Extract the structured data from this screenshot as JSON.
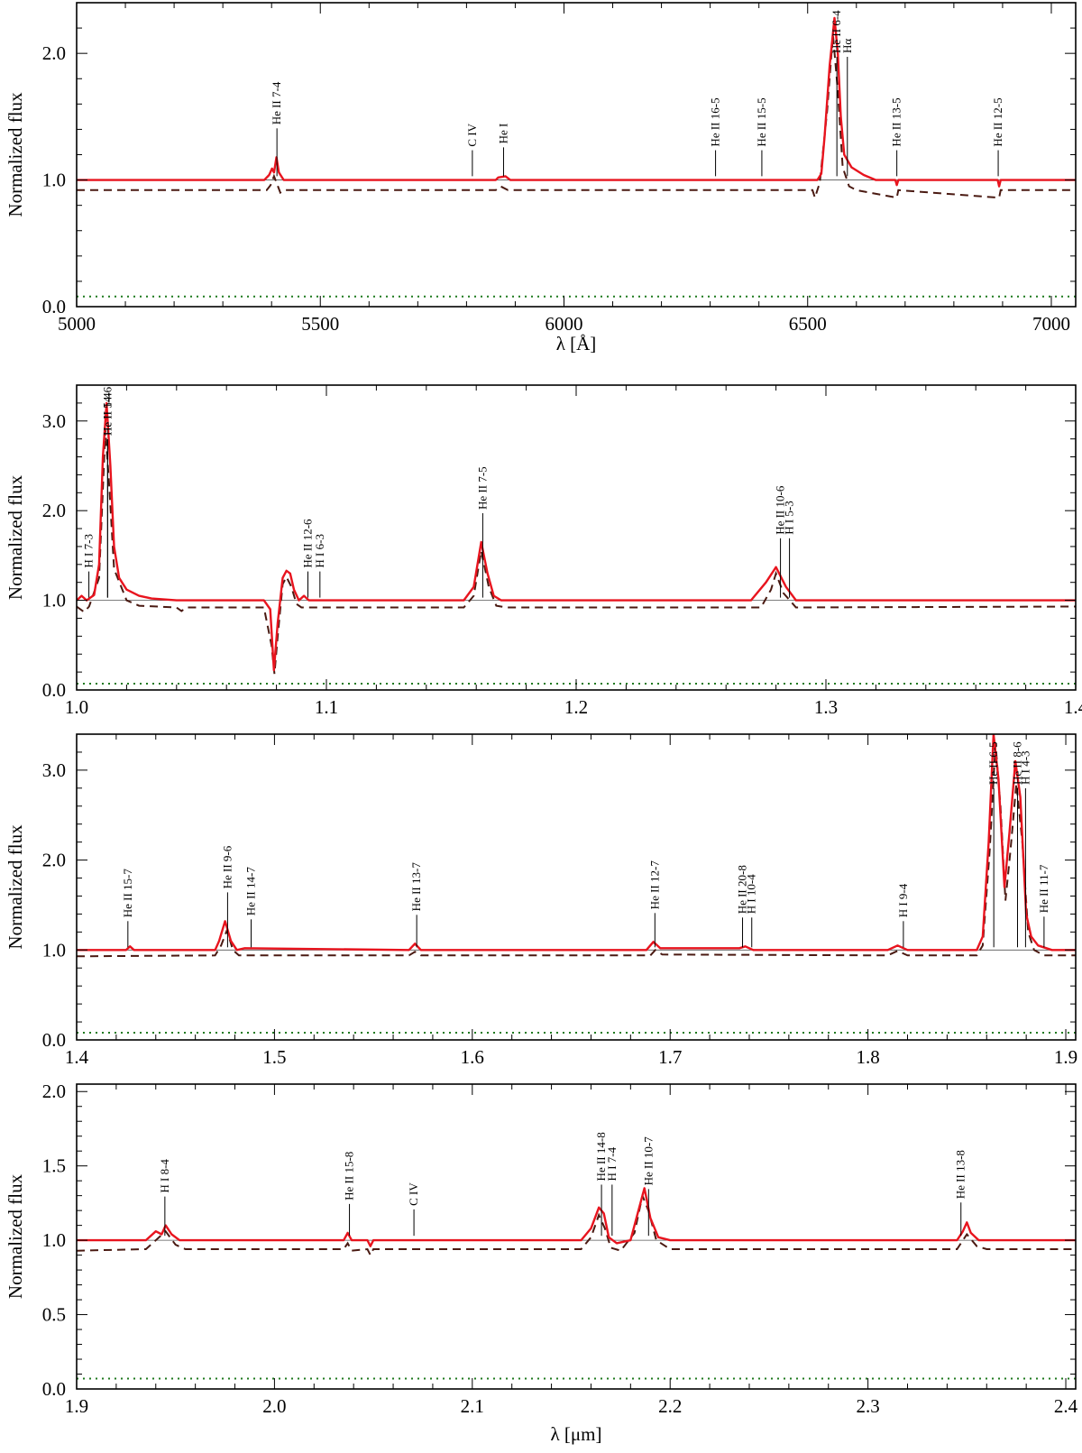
{
  "chart_data": [
    {
      "type": "line",
      "xlabel": "λ [Å]",
      "ylabel": "Normalized flux",
      "xlim": [
        5000,
        7050
      ],
      "ylim": [
        0,
        2.4
      ],
      "xticks": [
        5000,
        5500,
        6000,
        6500,
        7000
      ],
      "xtick_labels": [
        "5000",
        "5500",
        "6000",
        "6500",
        "7000"
      ],
      "yticks": [
        0,
        1,
        2
      ],
      "ytick_labels": [
        "0.0",
        "1.0",
        "2.0"
      ],
      "grid": false,
      "observed": [
        [
          5000,
          1.0
        ],
        [
          5385,
          1.0
        ],
        [
          5395,
          1.04
        ],
        [
          5401,
          1.09
        ],
        [
          5405,
          1.06
        ],
        [
          5410,
          1.18
        ],
        [
          5415,
          1.06
        ],
        [
          5425,
          1.0
        ],
        [
          5800,
          1.0
        ],
        [
          5860,
          1.0
        ],
        [
          5865,
          1.02
        ],
        [
          5880,
          1.03
        ],
        [
          5890,
          1.0
        ],
        [
          6520,
          1.0
        ],
        [
          6528,
          1.05
        ],
        [
          6535,
          1.35
        ],
        [
          6545,
          1.9
        ],
        [
          6555,
          2.28
        ],
        [
          6562,
          2.0
        ],
        [
          6568,
          1.5
        ],
        [
          6575,
          1.2
        ],
        [
          6590,
          1.1
        ],
        [
          6615,
          1.04
        ],
        [
          6640,
          1.0
        ],
        [
          6680,
          1.0
        ],
        [
          6683,
          0.96
        ],
        [
          6686,
          1.0
        ],
        [
          6890,
          1.0
        ],
        [
          6893,
          0.95
        ],
        [
          6896,
          1.0
        ],
        [
          7050,
          1.0
        ]
      ],
      "model": [
        [
          5000,
          0.92
        ],
        [
          5390,
          0.92
        ],
        [
          5398,
          0.96
        ],
        [
          5405,
          1.03
        ],
        [
          5412,
          0.96
        ],
        [
          5418,
          0.9
        ],
        [
          5425,
          0.92
        ],
        [
          5800,
          0.92
        ],
        [
          5860,
          0.92
        ],
        [
          5870,
          0.95
        ],
        [
          5885,
          0.92
        ],
        [
          6510,
          0.92
        ],
        [
          6515,
          0.86
        ],
        [
          6525,
          0.98
        ],
        [
          6540,
          1.55
        ],
        [
          6552,
          2.15
        ],
        [
          6562,
          1.7
        ],
        [
          6572,
          1.1
        ],
        [
          6585,
          0.95
        ],
        [
          6600,
          0.92
        ],
        [
          6683,
          0.86
        ],
        [
          6686,
          0.92
        ],
        [
          6893,
          0.86
        ],
        [
          6896,
          0.92
        ],
        [
          7050,
          0.92
        ]
      ],
      "model_level": 0.08,
      "line_ids": [
        {
          "x": 5411,
          "label": "He II 7-4"
        },
        {
          "x": 5812,
          "label": "C IV"
        },
        {
          "x": 5876,
          "label": "He I"
        },
        {
          "x": 6311,
          "label": "He II 16-5"
        },
        {
          "x": 6406,
          "label": "He II 15-5"
        },
        {
          "x": 6560,
          "label": "He II 6-4"
        },
        {
          "x": 6563,
          "label": "Hα"
        },
        {
          "x": 6683,
          "label": "He II 13-5"
        },
        {
          "x": 6891,
          "label": "He II 12-5"
        }
      ]
    },
    {
      "type": "line",
      "xlabel": "",
      "ylabel": "Normalized flux",
      "xlim": [
        1.0,
        1.4
      ],
      "ylim": [
        0,
        3.4
      ],
      "xticks": [
        1.0,
        1.1,
        1.2,
        1.3,
        1.4
      ],
      "xtick_labels": [
        "1.0",
        "1.1",
        "1.2",
        "1.3",
        "1.4"
      ],
      "yticks": [
        0,
        1,
        2,
        3
      ],
      "ytick_labels": [
        "0.0",
        "1.0",
        "2.0",
        "3.0"
      ],
      "grid": false,
      "observed": [
        [
          1.0,
          1.0
        ],
        [
          1.002,
          1.05
        ],
        [
          1.004,
          1.0
        ],
        [
          1.007,
          1.06
        ],
        [
          1.009,
          1.4
        ],
        [
          1.0105,
          2.6
        ],
        [
          1.012,
          3.2
        ],
        [
          1.0135,
          2.5
        ],
        [
          1.015,
          1.6
        ],
        [
          1.017,
          1.25
        ],
        [
          1.02,
          1.12
        ],
        [
          1.025,
          1.05
        ],
        [
          1.03,
          1.02
        ],
        [
          1.04,
          1.0
        ],
        [
          1.075,
          1.0
        ],
        [
          1.0775,
          0.9
        ],
        [
          1.079,
          0.22
        ],
        [
          1.0805,
          0.75
        ],
        [
          1.0825,
          1.25
        ],
        [
          1.084,
          1.33
        ],
        [
          1.0855,
          1.3
        ],
        [
          1.087,
          1.12
        ],
        [
          1.089,
          1.0
        ],
        [
          1.091,
          1.05
        ],
        [
          1.093,
          1.0
        ],
        [
          1.155,
          1.0
        ],
        [
          1.159,
          1.15
        ],
        [
          1.162,
          1.65
        ],
        [
          1.1645,
          1.3
        ],
        [
          1.167,
          1.05
        ],
        [
          1.17,
          1.0
        ],
        [
          1.27,
          1.0
        ],
        [
          1.276,
          1.2
        ],
        [
          1.28,
          1.37
        ],
        [
          1.284,
          1.15
        ],
        [
          1.288,
          1.0
        ],
        [
          1.4,
          1.0
        ]
      ],
      "model": [
        [
          1.0,
          0.93
        ],
        [
          1.003,
          0.87
        ],
        [
          1.005,
          0.93
        ],
        [
          1.009,
          1.25
        ],
        [
          1.0115,
          2.9
        ],
        [
          1.013,
          2.3
        ],
        [
          1.015,
          1.35
        ],
        [
          1.02,
          1.0
        ],
        [
          1.025,
          0.94
        ],
        [
          1.04,
          0.92
        ],
        [
          1.042,
          0.88
        ],
        [
          1.044,
          0.92
        ],
        [
          1.075,
          0.92
        ],
        [
          1.078,
          0.5
        ],
        [
          1.0792,
          0.18
        ],
        [
          1.0805,
          0.6
        ],
        [
          1.0825,
          1.18
        ],
        [
          1.084,
          1.26
        ],
        [
          1.086,
          1.15
        ],
        [
          1.088,
          0.96
        ],
        [
          1.09,
          0.92
        ],
        [
          1.155,
          0.92
        ],
        [
          1.159,
          1.05
        ],
        [
          1.162,
          1.55
        ],
        [
          1.165,
          1.15
        ],
        [
          1.168,
          0.94
        ],
        [
          1.172,
          0.92
        ],
        [
          1.274,
          0.92
        ],
        [
          1.278,
          1.12
        ],
        [
          1.28,
          1.3
        ],
        [
          1.283,
          1.08
        ],
        [
          1.288,
          0.92
        ],
        [
          1.4,
          0.93
        ]
      ],
      "model_level": 0.07,
      "line_ids": [
        {
          "x": 1.0124,
          "label": "He II 14-6"
        },
        {
          "x": 1.0049,
          "label": "H I 7-3"
        },
        {
          "x": 1.0124,
          "label": "He II 5-4"
        },
        {
          "x": 1.0926,
          "label": "He II 12-6"
        },
        {
          "x": 1.0938,
          "label": "H I 6-3"
        },
        {
          "x": 1.1626,
          "label": "He II 7-5"
        },
        {
          "x": 1.2818,
          "label": "He II 10-6"
        },
        {
          "x": 1.2818,
          "label": "H I 5-3"
        }
      ]
    },
    {
      "type": "line",
      "xlabel": "",
      "ylabel": "Normalized flux",
      "xlim": [
        1.4,
        1.905
      ],
      "ylim": [
        0,
        3.4
      ],
      "xticks": [
        1.4,
        1.5,
        1.6,
        1.7,
        1.8,
        1.9
      ],
      "xtick_labels": [
        "1.4",
        "1.5",
        "1.6",
        "1.7",
        "1.8",
        "1.9"
      ],
      "yticks": [
        0,
        1,
        2,
        3
      ],
      "ytick_labels": [
        "0.0",
        "1.0",
        "2.0",
        "3.0"
      ],
      "grid": false,
      "observed": [
        [
          1.4,
          1.0
        ],
        [
          1.425,
          1.0
        ],
        [
          1.427,
          1.04
        ],
        [
          1.429,
          1.0
        ],
        [
          1.47,
          1.0
        ],
        [
          1.472,
          1.1
        ],
        [
          1.475,
          1.32
        ],
        [
          1.478,
          1.1
        ],
        [
          1.481,
          1.0
        ],
        [
          1.485,
          1.02
        ],
        [
          1.568,
          1.0
        ],
        [
          1.571,
          1.07
        ],
        [
          1.574,
          1.0
        ],
        [
          1.688,
          1.0
        ],
        [
          1.6915,
          1.09
        ],
        [
          1.695,
          1.02
        ],
        [
          1.7,
          1.02
        ],
        [
          1.735,
          1.02
        ],
        [
          1.738,
          1.04
        ],
        [
          1.742,
          1.0
        ],
        [
          1.81,
          1.0
        ],
        [
          1.815,
          1.05
        ],
        [
          1.82,
          1.0
        ],
        [
          1.855,
          1.0
        ],
        [
          1.858,
          1.15
        ],
        [
          1.861,
          2.2
        ],
        [
          1.8635,
          3.4
        ],
        [
          1.866,
          2.9
        ],
        [
          1.869,
          1.7
        ],
        [
          1.8715,
          2.3
        ],
        [
          1.8745,
          3.1
        ],
        [
          1.877,
          2.7
        ],
        [
          1.88,
          1.4
        ],
        [
          1.8825,
          1.15
        ],
        [
          1.886,
          1.05
        ],
        [
          1.893,
          1.0
        ],
        [
          1.905,
          1.0
        ]
      ],
      "model": [
        [
          1.4,
          0.93
        ],
        [
          1.47,
          0.94
        ],
        [
          1.473,
          1.05
        ],
        [
          1.476,
          1.22
        ],
        [
          1.479,
          1.0
        ],
        [
          1.482,
          0.94
        ],
        [
          1.568,
          0.94
        ],
        [
          1.571,
          0.98
        ],
        [
          1.574,
          0.94
        ],
        [
          1.69,
          0.94
        ],
        [
          1.6925,
          1.0
        ],
        [
          1.696,
          0.95
        ],
        [
          1.81,
          0.94
        ],
        [
          1.815,
          0.99
        ],
        [
          1.82,
          0.94
        ],
        [
          1.855,
          0.94
        ],
        [
          1.858,
          1.05
        ],
        [
          1.8615,
          2.1
        ],
        [
          1.8645,
          3.3
        ],
        [
          1.867,
          2.6
        ],
        [
          1.8695,
          1.55
        ],
        [
          1.872,
          2.1
        ],
        [
          1.875,
          2.85
        ],
        [
          1.878,
          2.2
        ],
        [
          1.881,
          1.2
        ],
        [
          1.884,
          1.0
        ],
        [
          1.889,
          0.94
        ],
        [
          1.905,
          0.94
        ]
      ],
      "model_level": 0.08,
      "line_ids": [
        {
          "x": 1.4259,
          "label": "He II 15-7"
        },
        {
          "x": 1.4763,
          "label": "He II 9-6"
        },
        {
          "x": 1.4882,
          "label": "He II 14-7"
        },
        {
          "x": 1.5719,
          "label": "He II 13-7"
        },
        {
          "x": 1.6923,
          "label": "He II 12-7"
        },
        {
          "x": 1.7366,
          "label": "He II 20-8"
        },
        {
          "x": 1.7367,
          "label": "H I 10-4"
        },
        {
          "x": 1.8179,
          "label": "H I 9-4"
        },
        {
          "x": 1.8636,
          "label": "He II 6-5"
        },
        {
          "x": 1.8756,
          "label": "He II 8-6"
        },
        {
          "x": 1.8751,
          "label": "H I 4-3"
        },
        {
          "x": 1.889,
          "label": "He II 11-7"
        }
      ]
    },
    {
      "type": "line",
      "xlabel": "λ [μm]",
      "ylabel": "Normalized flux",
      "xlim": [
        1.9,
        2.405
      ],
      "ylim": [
        0,
        2.05
      ],
      "xticks": [
        1.9,
        2.0,
        2.1,
        2.2,
        2.3,
        2.4
      ],
      "xtick_labels": [
        "1.9",
        "2.0",
        "2.1",
        "2.2",
        "2.3",
        "2.4"
      ],
      "yticks": [
        0,
        0.5,
        1.0,
        1.5,
        2.0
      ],
      "ytick_labels": [
        "0.0",
        "0.5",
        "1.0",
        "1.5",
        "2.0"
      ],
      "grid": false,
      "observed": [
        [
          1.9,
          1.0
        ],
        [
          1.935,
          1.0
        ],
        [
          1.94,
          1.06
        ],
        [
          1.943,
          1.04
        ],
        [
          1.945,
          1.1
        ],
        [
          1.948,
          1.04
        ],
        [
          1.952,
          1.0
        ],
        [
          2.035,
          1.0
        ],
        [
          2.037,
          1.05
        ],
        [
          2.039,
          1.0
        ],
        [
          2.047,
          1.0
        ],
        [
          2.0485,
          0.96
        ],
        [
          2.05,
          1.0
        ],
        [
          2.155,
          1.0
        ],
        [
          2.16,
          1.08
        ],
        [
          2.164,
          1.22
        ],
        [
          2.1665,
          1.18
        ],
        [
          2.169,
          1.02
        ],
        [
          2.173,
          0.98
        ],
        [
          2.18,
          1.0
        ],
        [
          2.184,
          1.2
        ],
        [
          2.187,
          1.35
        ],
        [
          2.19,
          1.15
        ],
        [
          2.194,
          1.02
        ],
        [
          2.2,
          1.0
        ],
        [
          2.345,
          1.0
        ],
        [
          2.348,
          1.06
        ],
        [
          2.35,
          1.12
        ],
        [
          2.352,
          1.05
        ],
        [
          2.356,
          1.0
        ],
        [
          2.405,
          1.0
        ]
      ],
      "model": [
        [
          1.9,
          0.93
        ],
        [
          1.935,
          0.94
        ],
        [
          1.94,
          1.0
        ],
        [
          1.945,
          1.06
        ],
        [
          1.95,
          0.97
        ],
        [
          1.955,
          0.94
        ],
        [
          2.035,
          0.94
        ],
        [
          2.037,
          0.98
        ],
        [
          2.039,
          0.93
        ],
        [
          2.047,
          0.94
        ],
        [
          2.0485,
          0.9
        ],
        [
          2.05,
          0.94
        ],
        [
          2.155,
          0.94
        ],
        [
          2.16,
          1.02
        ],
        [
          2.164,
          1.17
        ],
        [
          2.167,
          1.08
        ],
        [
          2.17,
          0.95
        ],
        [
          2.175,
          0.93
        ],
        [
          2.182,
          1.05
        ],
        [
          2.186,
          1.3
        ],
        [
          2.189,
          1.2
        ],
        [
          2.193,
          1.0
        ],
        [
          2.2,
          0.94
        ],
        [
          2.345,
          0.94
        ],
        [
          2.35,
          1.04
        ],
        [
          2.355,
          0.96
        ],
        [
          2.36,
          0.94
        ],
        [
          2.405,
          0.94
        ]
      ],
      "model_level": 0.07,
      "line_ids": [
        {
          "x": 1.9446,
          "label": "H I 8-4"
        },
        {
          "x": 2.0379,
          "label": "He II 15-8"
        },
        {
          "x": 2.0705,
          "label": "C IV"
        },
        {
          "x": 2.1653,
          "label": "He II 14-8"
        },
        {
          "x": 2.1661,
          "label": "H I 7-4"
        },
        {
          "x": 2.1891,
          "label": "He II 10-7"
        },
        {
          "x": 2.347,
          "label": "He II 13-8"
        }
      ]
    }
  ]
}
